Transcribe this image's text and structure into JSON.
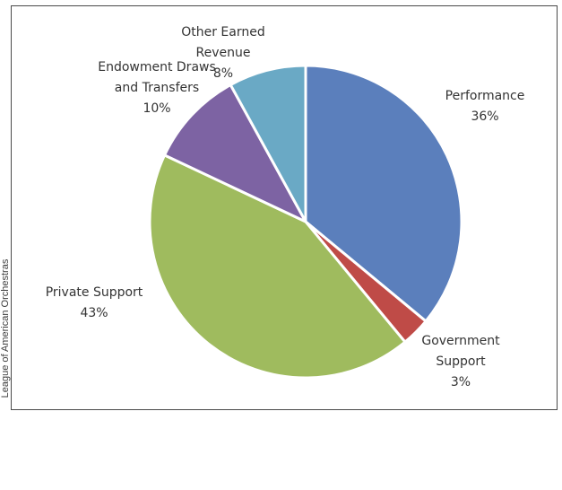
{
  "source_credit": "League of American Orchestras",
  "chart_data": {
    "type": "pie",
    "title": "",
    "series": [
      {
        "values": [
          {
            "label": [
              "Performance"
            ],
            "percent_label": "36%",
            "value": 36,
            "color": "#5b7fbc"
          },
          {
            "label": [
              "Government",
              "Support"
            ],
            "percent_label": "3%",
            "value": 3,
            "color": "#bf4b47"
          },
          {
            "label": [
              "Private Support"
            ],
            "percent_label": "43%",
            "value": 43,
            "color": "#9fbb5e"
          },
          {
            "label": [
              "Endowment Draws",
              "and Transfers"
            ],
            "percent_label": "10%",
            "value": 10,
            "color": "#7d63a3"
          },
          {
            "label": [
              "Other Earned",
              "Revenue"
            ],
            "percent_label": "8%",
            "value": 8,
            "color": "#6aa9c5"
          }
        ]
      }
    ],
    "start_angle": "12 o'clock",
    "direction": "clockwise",
    "slice_border": "#ffffff",
    "legend": "none"
  }
}
